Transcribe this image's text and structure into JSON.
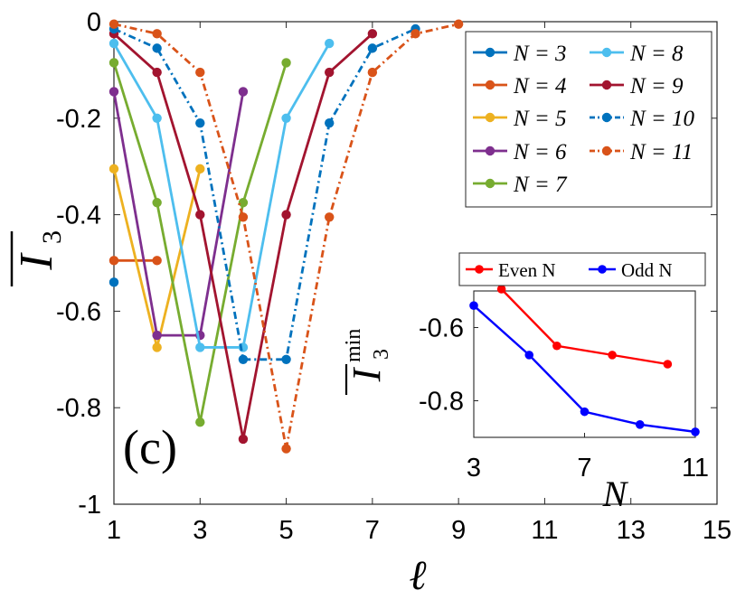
{
  "chart_data": [
    {
      "type": "line",
      "panel_label": "(c)",
      "xlabel": "ℓ",
      "ylabel": "I3 (overlined)",
      "xlim": [
        1,
        15
      ],
      "ylim": [
        -1,
        0
      ],
      "xticks": [
        "1",
        "3",
        "5",
        "7",
        "9",
        "11",
        "13",
        "15"
      ],
      "yticks": [
        "0",
        "-0.2",
        "-0.4",
        "-0.6",
        "-0.8",
        "-1"
      ],
      "legend_position": "top-right",
      "series": [
        {
          "name": "N = 3",
          "color": "#0072BD",
          "dashed": false,
          "x": [
            1
          ],
          "y": [
            -0.54
          ]
        },
        {
          "name": "N = 4",
          "color": "#D95319",
          "dashed": false,
          "x": [
            1,
            2
          ],
          "y": [
            -0.495,
            -0.495
          ]
        },
        {
          "name": "N = 5",
          "color": "#EDB120",
          "dashed": false,
          "x": [
            1,
            2,
            3
          ],
          "y": [
            -0.305,
            -0.675,
            -0.305
          ]
        },
        {
          "name": "N = 6",
          "color": "#7E2F8E",
          "dashed": false,
          "x": [
            1,
            2,
            3,
            4
          ],
          "y": [
            -0.145,
            -0.65,
            -0.65,
            -0.145
          ]
        },
        {
          "name": "N = 7",
          "color": "#77AC30",
          "dashed": false,
          "x": [
            1,
            2,
            3,
            4,
            5
          ],
          "y": [
            -0.085,
            -0.375,
            -0.83,
            -0.375,
            -0.085
          ]
        },
        {
          "name": "N = 8",
          "color": "#4DBEEE",
          "dashed": false,
          "x": [
            1,
            2,
            3,
            4,
            5,
            6
          ],
          "y": [
            -0.045,
            -0.2,
            -0.675,
            -0.675,
            -0.2,
            -0.045
          ]
        },
        {
          "name": "N = 9",
          "color": "#A2142F",
          "dashed": false,
          "x": [
            1,
            2,
            3,
            4,
            5,
            6,
            7
          ],
          "y": [
            -0.025,
            -0.105,
            -0.4,
            -0.865,
            -0.4,
            -0.105,
            -0.025
          ]
        },
        {
          "name": "N = 10",
          "color": "#0072BD",
          "dashed": true,
          "x": [
            1,
            2,
            3,
            4,
            5,
            6,
            7,
            8
          ],
          "y": [
            -0.015,
            -0.055,
            -0.21,
            -0.7,
            -0.7,
            -0.21,
            -0.055,
            -0.015
          ]
        },
        {
          "name": "N = 11",
          "color": "#D95319",
          "dashed": true,
          "x": [
            1,
            2,
            3,
            4,
            5,
            6,
            7,
            8,
            9
          ],
          "y": [
            -0.005,
            -0.025,
            -0.105,
            -0.405,
            -0.885,
            -0.405,
            -0.105,
            -0.025,
            -0.005
          ]
        }
      ]
    },
    {
      "type": "line",
      "panel": "inset",
      "xlabel": "N",
      "ylabel": "I3 min (overlined)",
      "ylabel_superscript": "min",
      "xlim": [
        3,
        11
      ],
      "ylim": [
        -0.9,
        -0.5
      ],
      "xticks": [
        "3",
        "7",
        "11"
      ],
      "yticks": [
        "-0.6",
        "-0.8"
      ],
      "series": [
        {
          "name": "Even N",
          "color": "#FF0000",
          "x": [
            4,
            6,
            8,
            10
          ],
          "y": [
            -0.495,
            -0.65,
            -0.675,
            -0.7
          ]
        },
        {
          "name": "Odd N",
          "color": "#0000FF",
          "x": [
            3,
            5,
            7,
            9,
            11
          ],
          "y": [
            -0.54,
            -0.675,
            -0.83,
            -0.865,
            -0.885
          ]
        }
      ]
    }
  ]
}
